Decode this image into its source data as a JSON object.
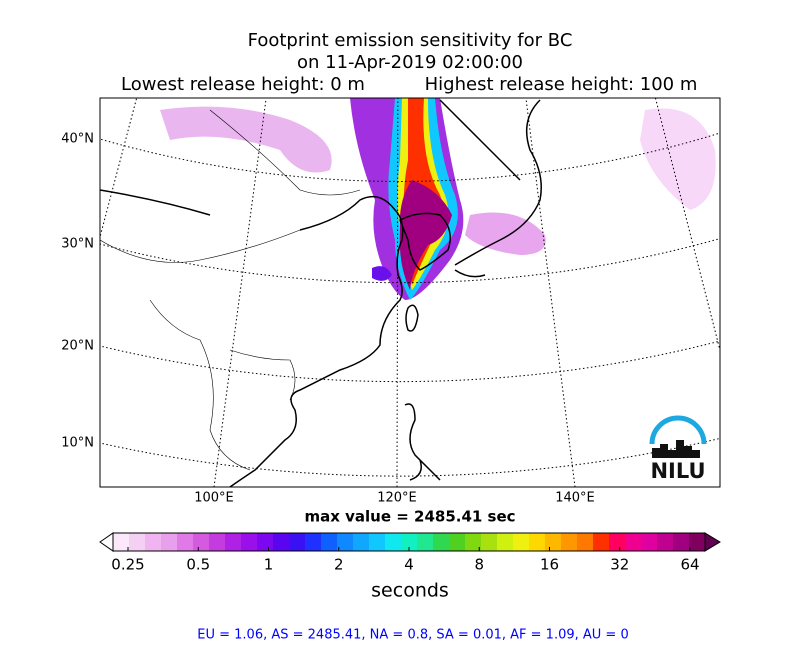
{
  "header": {
    "title_lines": [
      "Footprint emission sensitivity for BC",
      "on 11-Apr-2019 02:00:00"
    ],
    "release_low": "Lowest release height: 0 m",
    "release_high": "Highest release height: 100 m"
  },
  "map": {
    "lat_labels": [
      "40°N",
      "30°N",
      "20°N",
      "10°N"
    ],
    "lon_labels": [
      "100°E",
      "120°E",
      "140°E"
    ],
    "logo": "NILU"
  },
  "max_value": "max value = 2485.41 sec",
  "colorbar": {
    "label": "seconds",
    "log": true,
    "clim": [
      0.25,
      64
    ],
    "ticks": [
      0.25,
      0.5,
      1,
      2,
      4,
      8,
      16,
      32,
      64
    ],
    "under_color": "#ffffff",
    "over_color": "#600050",
    "colors": [
      "#fbe9fb",
      "#f5d0f5",
      "#f0b5f0",
      "#e9a0ec",
      "#e07ae6",
      "#d45ae0",
      "#c43be0",
      "#b021e6",
      "#9a10ea",
      "#7b08ee",
      "#5a05f0",
      "#3a10f5",
      "#1f30ff",
      "#1060ff",
      "#1088ff",
      "#10a8ff",
      "#10c8ff",
      "#10e8f0",
      "#10f0c0",
      "#20e890",
      "#30d850",
      "#50d020",
      "#80d810",
      "#a8e010",
      "#d0f010",
      "#f0f010",
      "#ffd800",
      "#ffb800",
      "#ff9800",
      "#ff7800",
      "#ff3000",
      "#ff0060",
      "#f00090",
      "#e000a0",
      "#c00090",
      "#a00080",
      "#800060"
    ]
  },
  "footer": "EU = 1.06,  AS = 2485.41,  NA = 0.8,  SA = 0.01,  AF = 1.09,  AU = 0"
}
